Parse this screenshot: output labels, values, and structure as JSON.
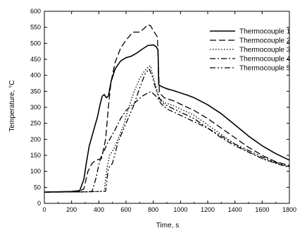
{
  "chart_data": {
    "type": "line",
    "title": "",
    "xlabel": "Time, s",
    "ylabel": "Temperature, °C",
    "xlim": [
      0,
      1800
    ],
    "ylim": [
      0,
      600
    ],
    "xticks": [
      0,
      200,
      400,
      600,
      800,
      1000,
      1200,
      1400,
      1600,
      1800
    ],
    "yticks": [
      0,
      50,
      100,
      150,
      200,
      250,
      300,
      350,
      400,
      450,
      500,
      550,
      600
    ],
    "grid": false,
    "legend_position": "top-right",
    "series": [
      {
        "name": "Thermocouple 1",
        "style": "solid",
        "color": "#000000",
        "points": [
          [
            0,
            35
          ],
          [
            100,
            36
          ],
          [
            200,
            37
          ],
          [
            260,
            40
          ],
          [
            290,
            75
          ],
          [
            310,
            130
          ],
          [
            330,
            180
          ],
          [
            350,
            210
          ],
          [
            370,
            240
          ],
          [
            390,
            270
          ],
          [
            410,
            310
          ],
          [
            425,
            335
          ],
          [
            440,
            340
          ],
          [
            455,
            330
          ],
          [
            470,
            335
          ],
          [
            490,
            380
          ],
          [
            520,
            420
          ],
          [
            560,
            445
          ],
          [
            600,
            455
          ],
          [
            640,
            460
          ],
          [
            680,
            470
          ],
          [
            720,
            482
          ],
          [
            760,
            493
          ],
          [
            800,
            495
          ],
          [
            820,
            490
          ],
          [
            835,
            480
          ],
          [
            840,
            370
          ],
          [
            860,
            365
          ],
          [
            900,
            358
          ],
          [
            950,
            352
          ],
          [
            1000,
            345
          ],
          [
            1050,
            338
          ],
          [
            1100,
            330
          ],
          [
            1200,
            308
          ],
          [
            1300,
            280
          ],
          [
            1400,
            245
          ],
          [
            1500,
            210
          ],
          [
            1600,
            180
          ],
          [
            1700,
            155
          ],
          [
            1800,
            135
          ]
        ]
      },
      {
        "name": "Thermocouple 2",
        "style": "dashed",
        "color": "#000000",
        "points": [
          [
            0,
            35
          ],
          [
            200,
            36
          ],
          [
            250,
            37
          ],
          [
            290,
            45
          ],
          [
            320,
            100
          ],
          [
            350,
            125
          ],
          [
            380,
            135
          ],
          [
            420,
            140
          ],
          [
            450,
            200
          ],
          [
            470,
            300
          ],
          [
            490,
            380
          ],
          [
            520,
            440
          ],
          [
            560,
            485
          ],
          [
            600,
            510
          ],
          [
            650,
            535
          ],
          [
            700,
            535
          ],
          [
            730,
            545
          ],
          [
            760,
            558
          ],
          [
            780,
            555
          ],
          [
            800,
            540
          ],
          [
            830,
            520
          ],
          [
            845,
            345
          ],
          [
            880,
            330
          ],
          [
            950,
            320
          ],
          [
            1000,
            310
          ],
          [
            1100,
            290
          ],
          [
            1200,
            265
          ],
          [
            1300,
            235
          ],
          [
            1400,
            205
          ],
          [
            1500,
            175
          ],
          [
            1600,
            150
          ],
          [
            1700,
            130
          ],
          [
            1800,
            118
          ]
        ]
      },
      {
        "name": "Thermocouple 3",
        "style": "dotted",
        "color": "#000000",
        "points": [
          [
            0,
            35
          ],
          [
            300,
            36
          ],
          [
            400,
            37
          ],
          [
            440,
            38
          ],
          [
            460,
            110
          ],
          [
            480,
            150
          ],
          [
            510,
            170
          ],
          [
            540,
            200
          ],
          [
            580,
            240
          ],
          [
            620,
            300
          ],
          [
            660,
            350
          ],
          [
            700,
            390
          ],
          [
            730,
            410
          ],
          [
            760,
            425
          ],
          [
            780,
            430
          ],
          [
            800,
            395
          ],
          [
            820,
            365
          ],
          [
            845,
            330
          ],
          [
            880,
            315
          ],
          [
            950,
            305
          ],
          [
            1000,
            295
          ],
          [
            1100,
            275
          ],
          [
            1200,
            245
          ],
          [
            1300,
            215
          ],
          [
            1400,
            185
          ],
          [
            1500,
            160
          ],
          [
            1600,
            140
          ],
          [
            1700,
            125
          ],
          [
            1800,
            115
          ]
        ]
      },
      {
        "name": "Thermocouple 4",
        "style": "dashdot",
        "color": "#000000",
        "points": [
          [
            0,
            35
          ],
          [
            300,
            36
          ],
          [
            350,
            37
          ],
          [
            380,
            80
          ],
          [
            400,
            120
          ],
          [
            420,
            150
          ],
          [
            440,
            165
          ],
          [
            460,
            185
          ],
          [
            480,
            200
          ],
          [
            520,
            230
          ],
          [
            560,
            265
          ],
          [
            600,
            290
          ],
          [
            640,
            305
          ],
          [
            680,
            320
          ],
          [
            720,
            335
          ],
          [
            760,
            345
          ],
          [
            780,
            348
          ],
          [
            800,
            343
          ],
          [
            830,
            330
          ],
          [
            860,
            310
          ],
          [
            900,
            295
          ],
          [
            950,
            285
          ],
          [
            1000,
            275
          ],
          [
            1100,
            255
          ],
          [
            1200,
            235
          ],
          [
            1300,
            205
          ],
          [
            1400,
            180
          ],
          [
            1500,
            160
          ],
          [
            1600,
            140
          ],
          [
            1700,
            125
          ],
          [
            1800,
            112
          ]
        ]
      },
      {
        "name": "Thermocouple 5",
        "style": "dashdotdot",
        "color": "#000000",
        "points": [
          [
            0,
            35
          ],
          [
            300,
            36
          ],
          [
            400,
            37
          ],
          [
            450,
            38
          ],
          [
            470,
            110
          ],
          [
            500,
            125
          ],
          [
            540,
            190
          ],
          [
            580,
            230
          ],
          [
            620,
            270
          ],
          [
            660,
            310
          ],
          [
            700,
            360
          ],
          [
            740,
            405
          ],
          [
            770,
            420
          ],
          [
            790,
            400
          ],
          [
            810,
            370
          ],
          [
            840,
            330
          ],
          [
            880,
            310
          ],
          [
            950,
            295
          ],
          [
            1000,
            285
          ],
          [
            1100,
            265
          ],
          [
            1200,
            235
          ],
          [
            1300,
            210
          ],
          [
            1400,
            185
          ],
          [
            1500,
            165
          ],
          [
            1600,
            145
          ],
          [
            1700,
            128
          ],
          [
            1800,
            115
          ]
        ]
      }
    ]
  }
}
